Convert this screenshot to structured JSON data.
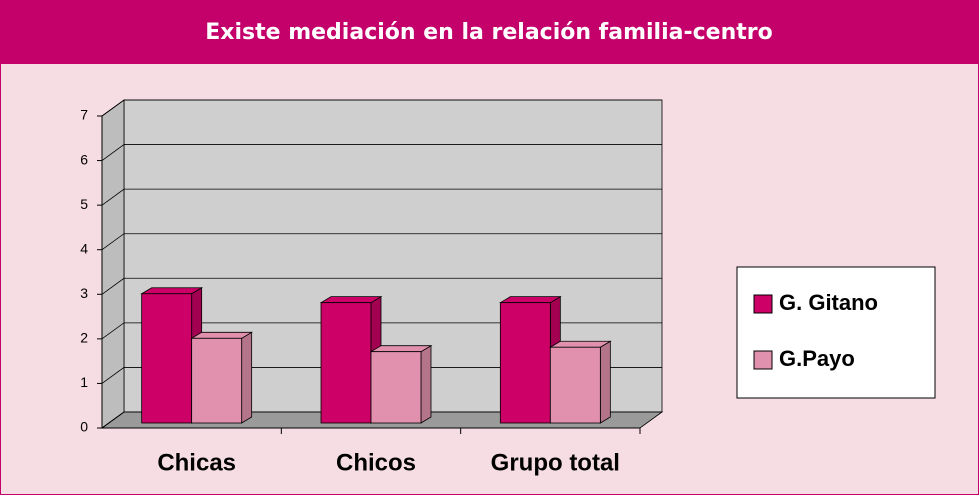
{
  "chart_data": {
    "type": "bar3d",
    "title": "Existe mediación en la relación familia-centro",
    "categories": [
      "Chicas",
      "Chicos",
      "Grupo total"
    ],
    "series": [
      {
        "name": "G. Gitano",
        "color": "#cc0066",
        "values": [
          2.9,
          2.7,
          2.7
        ]
      },
      {
        "name": "G.Payo",
        "color": "#e191ad",
        "values": [
          1.9,
          1.6,
          1.7
        ]
      }
    ],
    "ylim": [
      0,
      7
    ],
    "yticks": [
      0,
      1,
      2,
      3,
      4,
      5,
      6,
      7
    ],
    "grid": true,
    "legend": "right"
  }
}
